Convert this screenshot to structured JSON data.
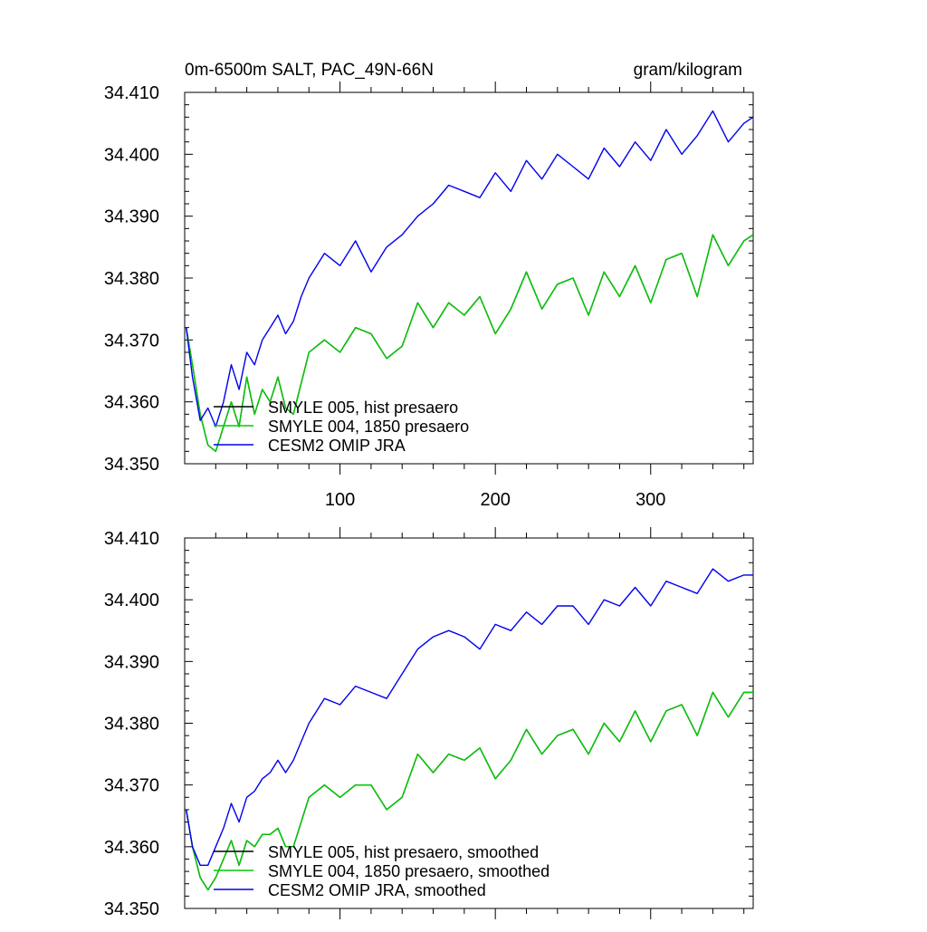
{
  "chart_data": [
    {
      "type": "line",
      "title_left": "0m-6500m SALT, PAC_49N-66N",
      "title_right": "gram/kilogram",
      "xlim": [
        0,
        366
      ],
      "ylim": [
        34.35,
        34.41
      ],
      "xticks": [
        "100",
        "200",
        "300"
      ],
      "yticks": [
        "34.410",
        "34.400",
        "34.390",
        "34.380",
        "34.370",
        "34.360",
        "34.350"
      ],
      "legend_position": "bottom-left",
      "series": [
        {
          "name": "SMYLE 005, hist presaero",
          "color": "#000000",
          "x": [
            1,
            5,
            10,
            15,
            20,
            25,
            30,
            35,
            40,
            45,
            50,
            55,
            60,
            65,
            70,
            75,
            80,
            90,
            100,
            110,
            120,
            130,
            140,
            150,
            160,
            170,
            180,
            190,
            200,
            210,
            220,
            230,
            240,
            250,
            260,
            270,
            280,
            290,
            300,
            310,
            320,
            330,
            340,
            350,
            360,
            366
          ],
          "y": [
            34.372,
            34.366,
            34.358,
            34.353,
            34.352,
            34.356,
            34.36,
            34.356,
            34.364,
            34.358,
            34.362,
            34.36,
            34.364,
            34.359,
            34.358,
            34.363,
            34.368,
            34.37,
            34.368,
            34.372,
            34.371,
            34.367,
            34.369,
            34.376,
            34.372,
            34.376,
            34.374,
            34.377,
            34.371,
            34.375,
            34.381,
            34.375,
            34.379,
            34.38,
            34.374,
            34.381,
            34.377,
            34.382,
            34.376,
            34.383,
            34.384,
            34.377,
            34.387,
            34.382,
            34.386,
            34.387
          ]
        },
        {
          "name": "SMYLE 004, 1850 presaero",
          "color": "#00cc00",
          "x": [
            1,
            5,
            10,
            15,
            20,
            25,
            30,
            35,
            40,
            45,
            50,
            55,
            60,
            65,
            70,
            75,
            80,
            90,
            100,
            110,
            120,
            130,
            140,
            150,
            160,
            170,
            180,
            190,
            200,
            210,
            220,
            230,
            240,
            250,
            260,
            270,
            280,
            290,
            300,
            310,
            320,
            330,
            340,
            350,
            360,
            366
          ],
          "y": [
            34.372,
            34.366,
            34.358,
            34.353,
            34.352,
            34.356,
            34.36,
            34.356,
            34.364,
            34.358,
            34.362,
            34.36,
            34.364,
            34.359,
            34.358,
            34.363,
            34.368,
            34.37,
            34.368,
            34.372,
            34.371,
            34.367,
            34.369,
            34.376,
            34.372,
            34.376,
            34.374,
            34.377,
            34.371,
            34.375,
            34.381,
            34.375,
            34.379,
            34.38,
            34.374,
            34.381,
            34.377,
            34.382,
            34.376,
            34.383,
            34.384,
            34.377,
            34.387,
            34.382,
            34.386,
            34.387
          ]
        },
        {
          "name": "CESM2 OMIP JRA",
          "color": "#0000ee",
          "x": [
            1,
            5,
            10,
            15,
            20,
            25,
            30,
            35,
            40,
            45,
            50,
            55,
            60,
            65,
            70,
            75,
            80,
            90,
            100,
            110,
            120,
            130,
            140,
            150,
            160,
            170,
            180,
            190,
            200,
            210,
            220,
            230,
            240,
            250,
            260,
            270,
            280,
            290,
            300,
            310,
            320,
            330,
            340,
            350,
            360,
            366
          ],
          "y": [
            34.372,
            34.364,
            34.357,
            34.359,
            34.356,
            34.36,
            34.366,
            34.362,
            34.368,
            34.366,
            34.37,
            34.372,
            34.374,
            34.371,
            34.373,
            34.377,
            34.38,
            34.384,
            34.382,
            34.386,
            34.381,
            34.385,
            34.387,
            34.39,
            34.392,
            34.395,
            34.394,
            34.393,
            34.397,
            34.394,
            34.399,
            34.396,
            34.4,
            34.398,
            34.396,
            34.401,
            34.398,
            34.402,
            34.399,
            34.404,
            34.4,
            34.403,
            34.407,
            34.402,
            34.405,
            34.406
          ]
        }
      ]
    },
    {
      "type": "line",
      "xlim": [
        0,
        366
      ],
      "ylim": [
        34.35,
        34.41
      ],
      "yticks": [
        "34.410",
        "34.400",
        "34.390",
        "34.380",
        "34.370",
        "34.360",
        "34.350"
      ],
      "legend_position": "bottom-left",
      "series": [
        {
          "name": "SMYLE 005, hist presaero, smoothed",
          "color": "#000000",
          "x": [
            1,
            5,
            10,
            15,
            20,
            25,
            30,
            35,
            40,
            45,
            50,
            55,
            60,
            65,
            70,
            75,
            80,
            90,
            100,
            110,
            120,
            130,
            140,
            150,
            160,
            170,
            180,
            190,
            200,
            210,
            220,
            230,
            240,
            250,
            260,
            270,
            280,
            290,
            300,
            310,
            320,
            330,
            340,
            350,
            360,
            366
          ],
          "y": [
            34.366,
            34.36,
            34.355,
            34.353,
            34.355,
            34.358,
            34.361,
            34.357,
            34.361,
            34.36,
            34.362,
            34.362,
            34.363,
            34.36,
            34.36,
            34.364,
            34.368,
            34.37,
            34.368,
            34.37,
            34.37,
            34.366,
            34.368,
            34.375,
            34.372,
            34.375,
            34.374,
            34.376,
            34.371,
            34.374,
            34.379,
            34.375,
            34.378,
            34.379,
            34.375,
            34.38,
            34.377,
            34.382,
            34.377,
            34.382,
            34.383,
            34.378,
            34.385,
            34.381,
            34.385,
            34.385
          ]
        },
        {
          "name": "SMYLE 004, 1850 presaero, smoothed",
          "color": "#00cc00",
          "x": [
            1,
            5,
            10,
            15,
            20,
            25,
            30,
            35,
            40,
            45,
            50,
            55,
            60,
            65,
            70,
            75,
            80,
            90,
            100,
            110,
            120,
            130,
            140,
            150,
            160,
            170,
            180,
            190,
            200,
            210,
            220,
            230,
            240,
            250,
            260,
            270,
            280,
            290,
            300,
            310,
            320,
            330,
            340,
            350,
            360,
            366
          ],
          "y": [
            34.366,
            34.36,
            34.355,
            34.353,
            34.355,
            34.358,
            34.361,
            34.357,
            34.361,
            34.36,
            34.362,
            34.362,
            34.363,
            34.36,
            34.36,
            34.364,
            34.368,
            34.37,
            34.368,
            34.37,
            34.37,
            34.366,
            34.368,
            34.375,
            34.372,
            34.375,
            34.374,
            34.376,
            34.371,
            34.374,
            34.379,
            34.375,
            34.378,
            34.379,
            34.375,
            34.38,
            34.377,
            34.382,
            34.377,
            34.382,
            34.383,
            34.378,
            34.385,
            34.381,
            34.385,
            34.385
          ]
        },
        {
          "name": "CESM2 OMIP JRA, smoothed",
          "color": "#0000ee",
          "x": [
            1,
            5,
            10,
            15,
            20,
            25,
            30,
            35,
            40,
            45,
            50,
            55,
            60,
            65,
            70,
            75,
            80,
            90,
            100,
            110,
            120,
            130,
            140,
            150,
            160,
            170,
            180,
            190,
            200,
            210,
            220,
            230,
            240,
            250,
            260,
            270,
            280,
            290,
            300,
            310,
            320,
            330,
            340,
            350,
            360,
            366
          ],
          "y": [
            34.366,
            34.36,
            34.357,
            34.357,
            34.36,
            34.363,
            34.367,
            34.364,
            34.368,
            34.369,
            34.371,
            34.372,
            34.374,
            34.372,
            34.374,
            34.377,
            34.38,
            34.384,
            34.383,
            34.386,
            34.385,
            34.384,
            34.388,
            34.392,
            34.394,
            34.395,
            34.394,
            34.392,
            34.396,
            34.395,
            34.398,
            34.396,
            34.399,
            34.399,
            34.396,
            34.4,
            34.399,
            34.402,
            34.399,
            34.403,
            34.402,
            34.401,
            34.405,
            34.403,
            34.404,
            34.404
          ]
        }
      ]
    }
  ]
}
